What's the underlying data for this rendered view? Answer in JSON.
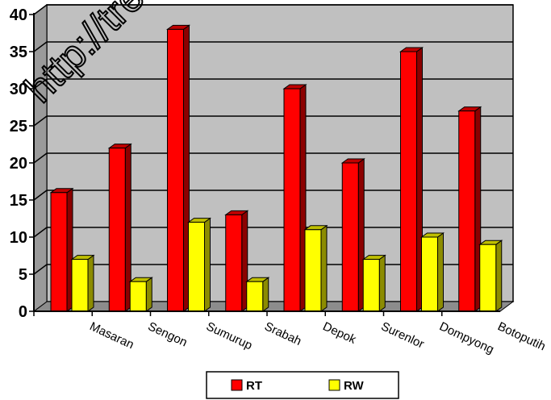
{
  "chart_data": {
    "type": "bar",
    "style": "3d-column",
    "title": "",
    "xlabel": "",
    "ylabel": "",
    "categories": [
      "Masaran",
      "Sengon",
      "Sumurup",
      "Srabah",
      "Depok",
      "Surenlor",
      "Dompyong",
      "Botoputih"
    ],
    "series": [
      {
        "name": "RT",
        "color": "#ff0000",
        "values": [
          16,
          22,
          38,
          13,
          30,
          20,
          35,
          27
        ]
      },
      {
        "name": "RW",
        "color": "#ffff00",
        "values": [
          7,
          4,
          12,
          4,
          11,
          7,
          10,
          9
        ]
      }
    ],
    "ylim": [
      0,
      40
    ],
    "yticks": [
      0,
      5,
      10,
      15,
      20,
      25,
      30,
      35,
      40
    ],
    "grid": true,
    "plot_background": "#c0c0c0",
    "legend_position": "bottom"
  },
  "watermark": "http://tre"
}
